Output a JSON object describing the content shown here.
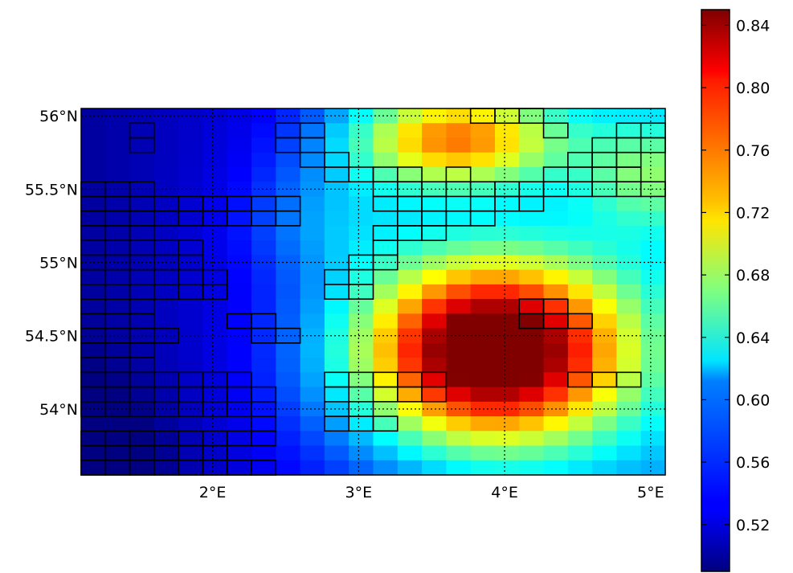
{
  "chart_data": {
    "type": "heatmap",
    "title": "",
    "xlabel": "",
    "ylabel": "",
    "x_range_deg": [
      1.1,
      5.1
    ],
    "y_range_deg": [
      53.55,
      56.05
    ],
    "x_ticks": [
      {
        "value": 2,
        "label": "2°E"
      },
      {
        "value": 3,
        "label": "3°E"
      },
      {
        "value": 4,
        "label": "4°E"
      },
      {
        "value": 5,
        "label": "5°E"
      }
    ],
    "y_ticks": [
      {
        "value": 56,
        "label": "56°N"
      },
      {
        "value": 55.5,
        "label": "55.5°N"
      },
      {
        "value": 55,
        "label": "55°N"
      },
      {
        "value": 54.5,
        "label": "54.5°N"
      },
      {
        "value": 54,
        "label": "54°N"
      }
    ],
    "gridlines": "dotted",
    "colormap": "jet",
    "colorbar": {
      "vmin": 0.49,
      "vmax": 0.85,
      "placement": "right",
      "ticks": [
        {
          "value": 0.84,
          "label": "0.84"
        },
        {
          "value": 0.8,
          "label": "0.80"
        },
        {
          "value": 0.76,
          "label": "0.76"
        },
        {
          "value": 0.72,
          "label": "0.72"
        },
        {
          "value": 0.68,
          "label": "0.68"
        },
        {
          "value": 0.64,
          "label": "0.64"
        },
        {
          "value": 0.6,
          "label": "0.60"
        },
        {
          "value": 0.56,
          "label": "0.56"
        },
        {
          "value": 0.52,
          "label": "0.52"
        }
      ]
    },
    "field_description": "Smooth scalar field: low (~0.50) in west/south-west, high (~0.84) centred near 3.9°E 54.4°N, secondary high near 3.7°E 55.8°N",
    "outlined_cells_note": "Black-outlined grid cells form a band crossing the domain"
  }
}
